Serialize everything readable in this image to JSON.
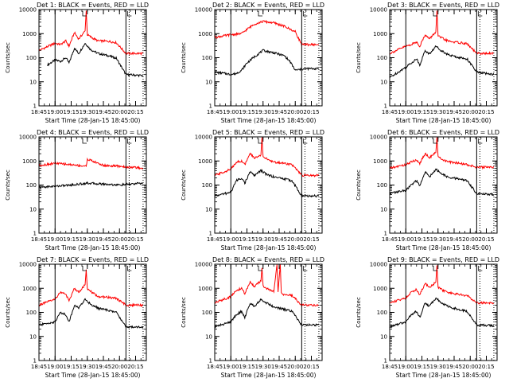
{
  "figure": {
    "time_ticks": [
      "18:45",
      "19:00",
      "19:15",
      "19:30",
      "19:45",
      "20:00",
      "20:15"
    ],
    "xlabel": "Start Time (28-Jan-15 18:45:00)",
    "ylabel": "Counts/sec",
    "y_ticks": [
      "1",
      "10",
      "100",
      "1000",
      "10000"
    ],
    "colors": {
      "events": "#000000",
      "lld": "#ff0000",
      "frame": "#000000"
    }
  },
  "chart_data": [
    {
      "type": "line",
      "title": "Det 1: BLACK = Events, RED = LLD",
      "xlabel": "Start Time (28-Jan-15 18:45:00)",
      "ylabel": "Counts/sec",
      "xlim": [
        "18:45",
        "20:25"
      ],
      "ylim": [
        1,
        10000
      ],
      "yscale": "log",
      "series": [
        {
          "name": "Events",
          "x": [
            "18:53",
            "19:00",
            "19:05",
            "19:10",
            "19:13",
            "19:18",
            "19:22",
            "19:28",
            "19:33",
            "19:40",
            "19:50",
            "19:57",
            "20:06",
            "20:22"
          ],
          "values": [
            50,
            80,
            70,
            100,
            60,
            250,
            150,
            400,
            220,
            150,
            120,
            95,
            20,
            18
          ]
        },
        {
          "name": "LLD",
          "x": [
            "18:45",
            "19:00",
            "19:05",
            "19:10",
            "19:13",
            "19:18",
            "19:22",
            "19:28",
            "19:29",
            "19:30",
            "19:35",
            "19:40",
            "19:50",
            "19:57",
            "20:06",
            "20:22"
          ],
          "values": [
            200,
            400,
            350,
            500,
            300,
            1100,
            600,
            1300,
            9000,
            900,
            650,
            500,
            480,
            420,
            150,
            150
          ]
        }
      ]
    },
    {
      "type": "line",
      "title": "Det 2: BLACK = Events, RED = LLD",
      "xlabel": "Start Time (28-Jan-15 18:45:00)",
      "ylabel": "Counts/sec",
      "xlim": [
        "18:45",
        "20:25"
      ],
      "ylim": [
        1,
        10000
      ],
      "yscale": "log",
      "series": [
        {
          "name": "Events",
          "x": [
            "18:45",
            "18:55",
            "19:00",
            "19:05",
            "19:10",
            "19:15",
            "19:22",
            "19:30",
            "19:40",
            "19:50",
            "19:55",
            "20:00",
            "20:10",
            "20:22"
          ],
          "values": [
            25,
            22,
            20,
            22,
            30,
            60,
            110,
            200,
            160,
            120,
            70,
            30,
            35,
            35
          ]
        },
        {
          "name": "LLD",
          "x": [
            "18:45",
            "19:00",
            "19:10",
            "19:15",
            "19:22",
            "19:30",
            "19:40",
            "19:50",
            "20:00",
            "20:06",
            "20:22"
          ],
          "values": [
            700,
            900,
            1000,
            1500,
            2500,
            3200,
            2800,
            2000,
            1200,
            350,
            350
          ]
        }
      ]
    },
    {
      "type": "line",
      "title": "Det 3: BLACK = Events, RED = LLD",
      "xlabel": "Start Time (28-Jan-15 18:45:00)",
      "ylabel": "Counts/sec",
      "xlim": [
        "18:45",
        "20:25"
      ],
      "ylim": [
        1,
        10000
      ],
      "yscale": "log",
      "series": [
        {
          "name": "Events",
          "x": [
            "18:45",
            "19:00",
            "19:05",
            "19:10",
            "19:13",
            "19:18",
            "19:22",
            "19:28",
            "19:33",
            "19:40",
            "19:50",
            "19:57",
            "20:06",
            "20:22"
          ],
          "values": [
            15,
            40,
            60,
            90,
            50,
            200,
            140,
            300,
            200,
            130,
            100,
            90,
            25,
            20
          ]
        },
        {
          "name": "LLD",
          "x": [
            "18:45",
            "19:00",
            "19:05",
            "19:10",
            "19:13",
            "19:18",
            "19:22",
            "19:28",
            "19:29",
            "19:30",
            "19:35",
            "19:40",
            "19:50",
            "19:57",
            "20:06",
            "20:22"
          ],
          "values": [
            150,
            300,
            350,
            450,
            300,
            900,
            600,
            1200,
            9000,
            800,
            600,
            480,
            420,
            380,
            150,
            150
          ]
        }
      ]
    },
    {
      "type": "line",
      "title": "Det 4: BLACK = Events, RED = LLD",
      "xlabel": "Start Time (28-Jan-15 18:45:00)",
      "ylabel": "Counts/sec",
      "xlim": [
        "18:45",
        "20:25"
      ],
      "ylim": [
        1,
        10000
      ],
      "yscale": "log",
      "series": [
        {
          "name": "Events",
          "x": [
            "18:45",
            "19:00",
            "19:15",
            "19:30",
            "19:45",
            "20:00",
            "20:22"
          ],
          "values": [
            80,
            90,
            100,
            120,
            110,
            100,
            120
          ]
        },
        {
          "name": "LLD",
          "x": [
            "18:45",
            "19:00",
            "19:15",
            "19:29",
            "19:30",
            "19:45",
            "20:00",
            "20:22"
          ],
          "values": [
            650,
            800,
            700,
            600,
            1200,
            650,
            600,
            500
          ]
        }
      ]
    },
    {
      "type": "line",
      "title": "Det 5: BLACK = Events, RED = LLD",
      "xlabel": "Start Time (28-Jan-15 18:45:00)",
      "ylabel": "Counts/sec",
      "xlim": [
        "18:45",
        "20:25"
      ],
      "ylim": [
        1,
        10000
      ],
      "yscale": "log",
      "series": [
        {
          "name": "Events",
          "x": [
            "18:45",
            "19:00",
            "19:05",
            "19:10",
            "19:13",
            "19:18",
            "19:22",
            "19:28",
            "19:33",
            "19:40",
            "19:50",
            "19:57",
            "20:06",
            "20:22"
          ],
          "values": [
            35,
            50,
            150,
            200,
            120,
            350,
            250,
            400,
            280,
            220,
            180,
            150,
            35,
            35
          ]
        },
        {
          "name": "LLD",
          "x": [
            "18:45",
            "19:00",
            "19:05",
            "19:10",
            "19:13",
            "19:18",
            "19:22",
            "19:28",
            "19:29",
            "19:30",
            "19:35",
            "19:40",
            "19:50",
            "19:57",
            "20:06",
            "20:22"
          ],
          "values": [
            250,
            450,
            900,
            1000,
            700,
            2000,
            1300,
            1800,
            9500,
            1500,
            1100,
            900,
            800,
            700,
            250,
            250
          ]
        }
      ]
    },
    {
      "type": "line",
      "title": "Det 6: BLACK = Events, RED = LLD",
      "xlabel": "Start Time (28-Jan-15 18:45:00)",
      "ylabel": "Counts/sec",
      "xlim": [
        "18:45",
        "20:25"
      ],
      "ylim": [
        1,
        10000
      ],
      "yscale": "log",
      "series": [
        {
          "name": "Events",
          "x": [
            "18:45",
            "19:00",
            "19:05",
            "19:10",
            "19:13",
            "19:18",
            "19:22",
            "19:28",
            "19:33",
            "19:40",
            "19:50",
            "19:57",
            "20:06",
            "20:22"
          ],
          "values": [
            45,
            60,
            100,
            150,
            90,
            350,
            220,
            450,
            300,
            200,
            180,
            150,
            45,
            40
          ]
        },
        {
          "name": "LLD",
          "x": [
            "18:45",
            "19:00",
            "19:05",
            "19:10",
            "19:13",
            "19:18",
            "19:22",
            "19:28",
            "19:29",
            "19:30",
            "19:35",
            "19:40",
            "19:50",
            "19:57",
            "20:06",
            "20:22"
          ],
          "values": [
            500,
            700,
            900,
            1100,
            800,
            2000,
            1400,
            2200,
            9500,
            1500,
            1100,
            900,
            800,
            700,
            550,
            550
          ]
        }
      ]
    },
    {
      "type": "line",
      "title": "Det 7: BLACK = Events, RED = LLD",
      "xlabel": "Start Time (28-Jan-15 18:45:00)",
      "ylabel": "Counts/sec",
      "xlim": [
        "18:45",
        "20:25"
      ],
      "ylim": [
        1,
        10000
      ],
      "yscale": "log",
      "series": [
        {
          "name": "Events",
          "x": [
            "18:45",
            "19:00",
            "19:05",
            "19:10",
            "19:13",
            "19:18",
            "19:22",
            "19:28",
            "19:33",
            "19:40",
            "19:50",
            "19:57",
            "20:06",
            "20:22"
          ],
          "values": [
            30,
            40,
            100,
            80,
            40,
            200,
            150,
            350,
            220,
            150,
            120,
            100,
            25,
            25
          ]
        },
        {
          "name": "LLD",
          "x": [
            "18:45",
            "19:00",
            "19:05",
            "19:10",
            "19:13",
            "19:18",
            "19:22",
            "19:28",
            "19:29",
            "19:30",
            "19:35",
            "19:40",
            "19:50",
            "19:57",
            "20:06",
            "20:22"
          ],
          "values": [
            200,
            350,
            700,
            550,
            300,
            1000,
            700,
            1400,
            6000,
            900,
            650,
            450,
            420,
            380,
            200,
            200
          ]
        }
      ]
    },
    {
      "type": "line",
      "title": "Det 8: BLACK = Events, RED = LLD",
      "xlabel": "Start Time (28-Jan-15 18:45:00)",
      "ylabel": "Counts/sec",
      "xlim": [
        "18:45",
        "20:25"
      ],
      "ylim": [
        1,
        10000
      ],
      "yscale": "log",
      "series": [
        {
          "name": "Events",
          "x": [
            "18:45",
            "19:00",
            "19:05",
            "19:10",
            "19:13",
            "19:18",
            "19:22",
            "19:28",
            "19:33",
            "19:40",
            "19:50",
            "19:57",
            "20:06",
            "20:22"
          ],
          "values": [
            25,
            40,
            80,
            110,
            60,
            250,
            180,
            350,
            250,
            170,
            130,
            110,
            30,
            30
          ]
        },
        {
          "name": "LLD",
          "x": [
            "18:45",
            "19:00",
            "19:05",
            "19:10",
            "19:13",
            "19:18",
            "19:22",
            "19:28",
            "19:29",
            "19:30",
            "19:35",
            "19:40",
            "19:43",
            "19:44",
            "19:46",
            "19:47",
            "19:50",
            "19:57",
            "20:06",
            "20:22"
          ],
          "values": [
            250,
            450,
            800,
            1000,
            600,
            1800,
            1200,
            2000,
            7000,
            1200,
            900,
            700,
            10000,
            700,
            10000,
            600,
            550,
            500,
            200,
            200
          ]
        }
      ]
    },
    {
      "type": "line",
      "title": "Det 9: BLACK = Events, RED = LLD",
      "xlabel": "Start Time (28-Jan-15 18:45:00)",
      "ylabel": "Counts/sec",
      "xlim": [
        "18:45",
        "20:25"
      ],
      "ylim": [
        1,
        10000
      ],
      "yscale": "log",
      "series": [
        {
          "name": "Events",
          "x": [
            "18:45",
            "19:00",
            "19:05",
            "19:10",
            "19:13",
            "19:18",
            "19:22",
            "19:28",
            "19:33",
            "19:40",
            "19:50",
            "19:57",
            "20:06",
            "20:22"
          ],
          "values": [
            25,
            40,
            80,
            110,
            60,
            250,
            180,
            400,
            250,
            170,
            130,
            110,
            30,
            28
          ]
        },
        {
          "name": "LLD",
          "x": [
            "18:45",
            "19:00",
            "19:05",
            "19:10",
            "19:13",
            "19:18",
            "19:22",
            "19:28",
            "19:29",
            "19:30",
            "19:35",
            "19:40",
            "19:50",
            "19:57",
            "20:06",
            "20:22"
          ],
          "values": [
            250,
            400,
            700,
            900,
            550,
            1600,
            1100,
            1800,
            9000,
            1100,
            800,
            650,
            550,
            500,
            250,
            250
          ]
        }
      ]
    }
  ]
}
